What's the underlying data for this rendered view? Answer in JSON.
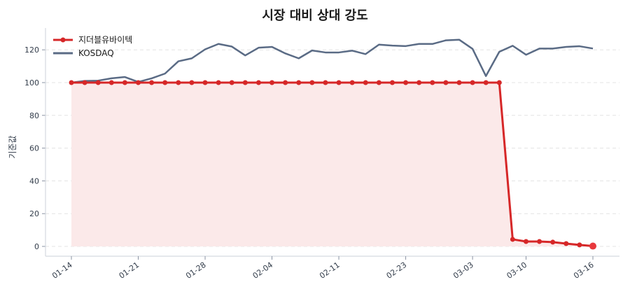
{
  "chart_data": {
    "type": "line",
    "title": "시장 대비 상대 강도",
    "xlabel": "",
    "ylabel": "기준값",
    "ylim": [
      -6,
      133
    ],
    "yticks": [
      0,
      20,
      40,
      60,
      80,
      100,
      120
    ],
    "xtick_labels": [
      "01-14",
      "01-21",
      "01-28",
      "02-04",
      "02-11",
      "02-23",
      "03-03",
      "03-10",
      "03-16"
    ],
    "xtick_indices": [
      0,
      5,
      10,
      15,
      20,
      25,
      30,
      34,
      39
    ],
    "grid": true,
    "legend_position": "upper left",
    "series": [
      {
        "name": "지더블유바이텍",
        "color": "#d62728",
        "marker": "circle",
        "fill": true,
        "fill_color": "#fbe9e9",
        "values": [
          100,
          100,
          100,
          100,
          100,
          100,
          100,
          100,
          100,
          100,
          100,
          100,
          100,
          100,
          100,
          100,
          100,
          100,
          100,
          100,
          100,
          100,
          100,
          100,
          100,
          100,
          100,
          100,
          100,
          100,
          100,
          100,
          100,
          4.3,
          3.0,
          3.0,
          2.6,
          1.7,
          0.9,
          0.2
        ]
      },
      {
        "name": "KOSDAQ",
        "color": "#5a6b85",
        "marker": "none",
        "fill": false,
        "values": [
          100,
          101,
          101.2,
          102.6,
          103.4,
          100.4,
          102.6,
          105.5,
          113,
          114.8,
          120.3,
          123.6,
          122,
          116.6,
          121.3,
          121.8,
          117.8,
          114.8,
          119.6,
          118.4,
          118.4,
          119.5,
          117.4,
          123.2,
          122.6,
          122.3,
          123.6,
          123.6,
          125.8,
          126.2,
          120.6,
          104,
          118.8,
          122.5,
          117,
          120.8,
          120.8,
          121.8,
          122.2,
          120.8
        ]
      }
    ]
  },
  "legend": {
    "items": [
      {
        "label": "지더블유바이텍"
      },
      {
        "label": "KOSDAQ"
      }
    ]
  }
}
